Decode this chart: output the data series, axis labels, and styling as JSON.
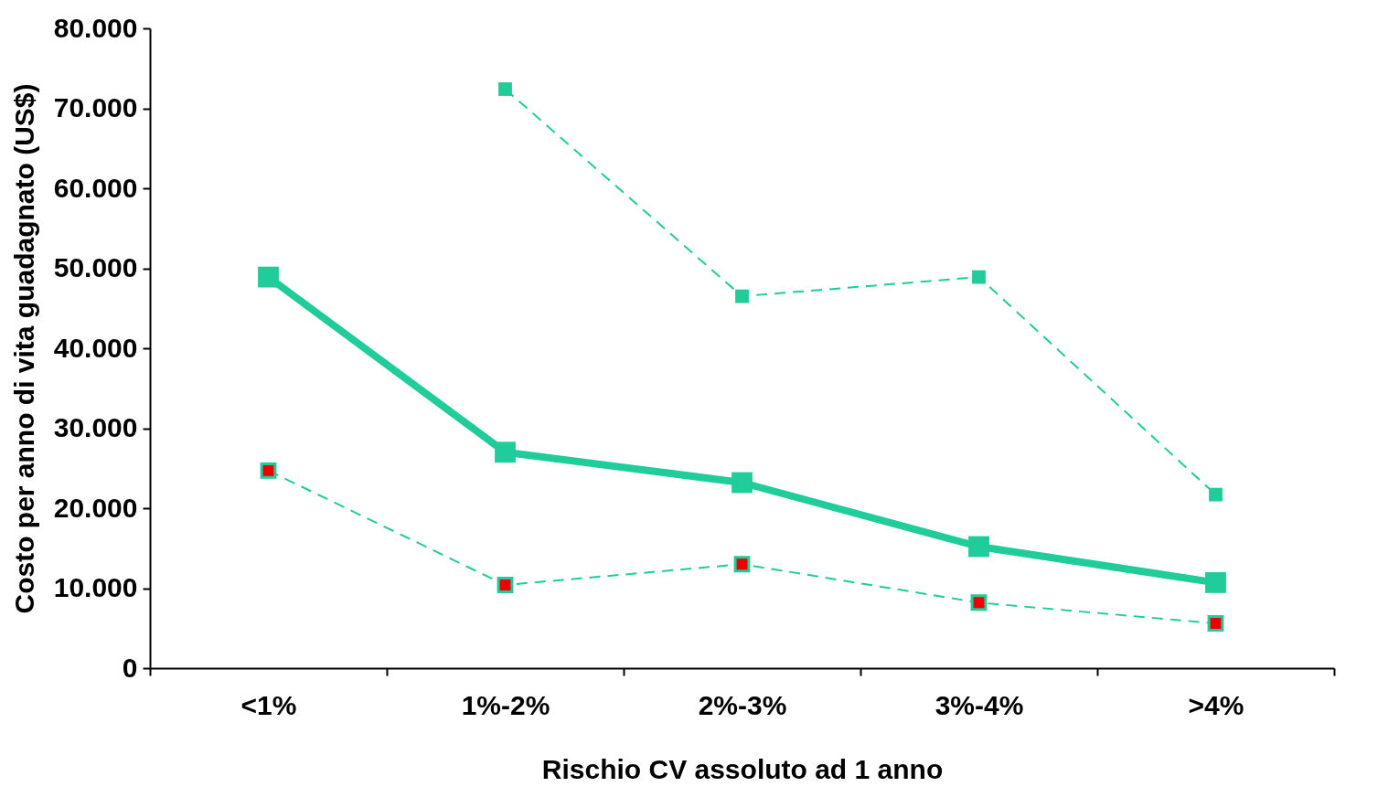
{
  "chart_data": {
    "type": "line",
    "xlabel": "Rischio CV assoluto ad 1 anno",
    "ylabel": "Costo per anno di vita guadagnato (US$)",
    "categories": [
      "<1%",
      "1%-2%",
      "2%-3%",
      "3%-4%",
      ">4%"
    ],
    "series": [
      {
        "color": "#1fcc9a",
        "line_style": "dashed",
        "values": [
          null,
          72400,
          46500,
          48900,
          21700
        ]
      },
      {
        "color": "#1fcc9a",
        "line_style": "solid",
        "values": [
          48900,
          27000,
          23200,
          15200,
          10700
        ]
      },
      {
        "color": "#1fcc9a",
        "line_style": "dashed",
        "colors": [
          "#ee0000",
          "#ee0000",
          "#ee0000",
          "#ee0000",
          "#ee0000"
        ],
        "values": [
          24700,
          10400,
          13000,
          8200,
          5600
        ]
      }
    ],
    "ylim": [
      0,
      80000
    ],
    "yticks": [
      {
        "value": 0,
        "label": "0"
      },
      {
        "value": 10000,
        "label": "10.000"
      },
      {
        "value": 20000,
        "label": "20.000"
      },
      {
        "value": 30000,
        "label": "30.000"
      },
      {
        "value": 40000,
        "label": "40.000"
      },
      {
        "value": 50000,
        "label": "50.000"
      },
      {
        "value": 60000,
        "label": "60.000"
      },
      {
        "value": 70000,
        "label": "70.000"
      },
      {
        "value": 80000,
        "label": "80.000"
      }
    ],
    "grid": false,
    "marker": "square"
  }
}
